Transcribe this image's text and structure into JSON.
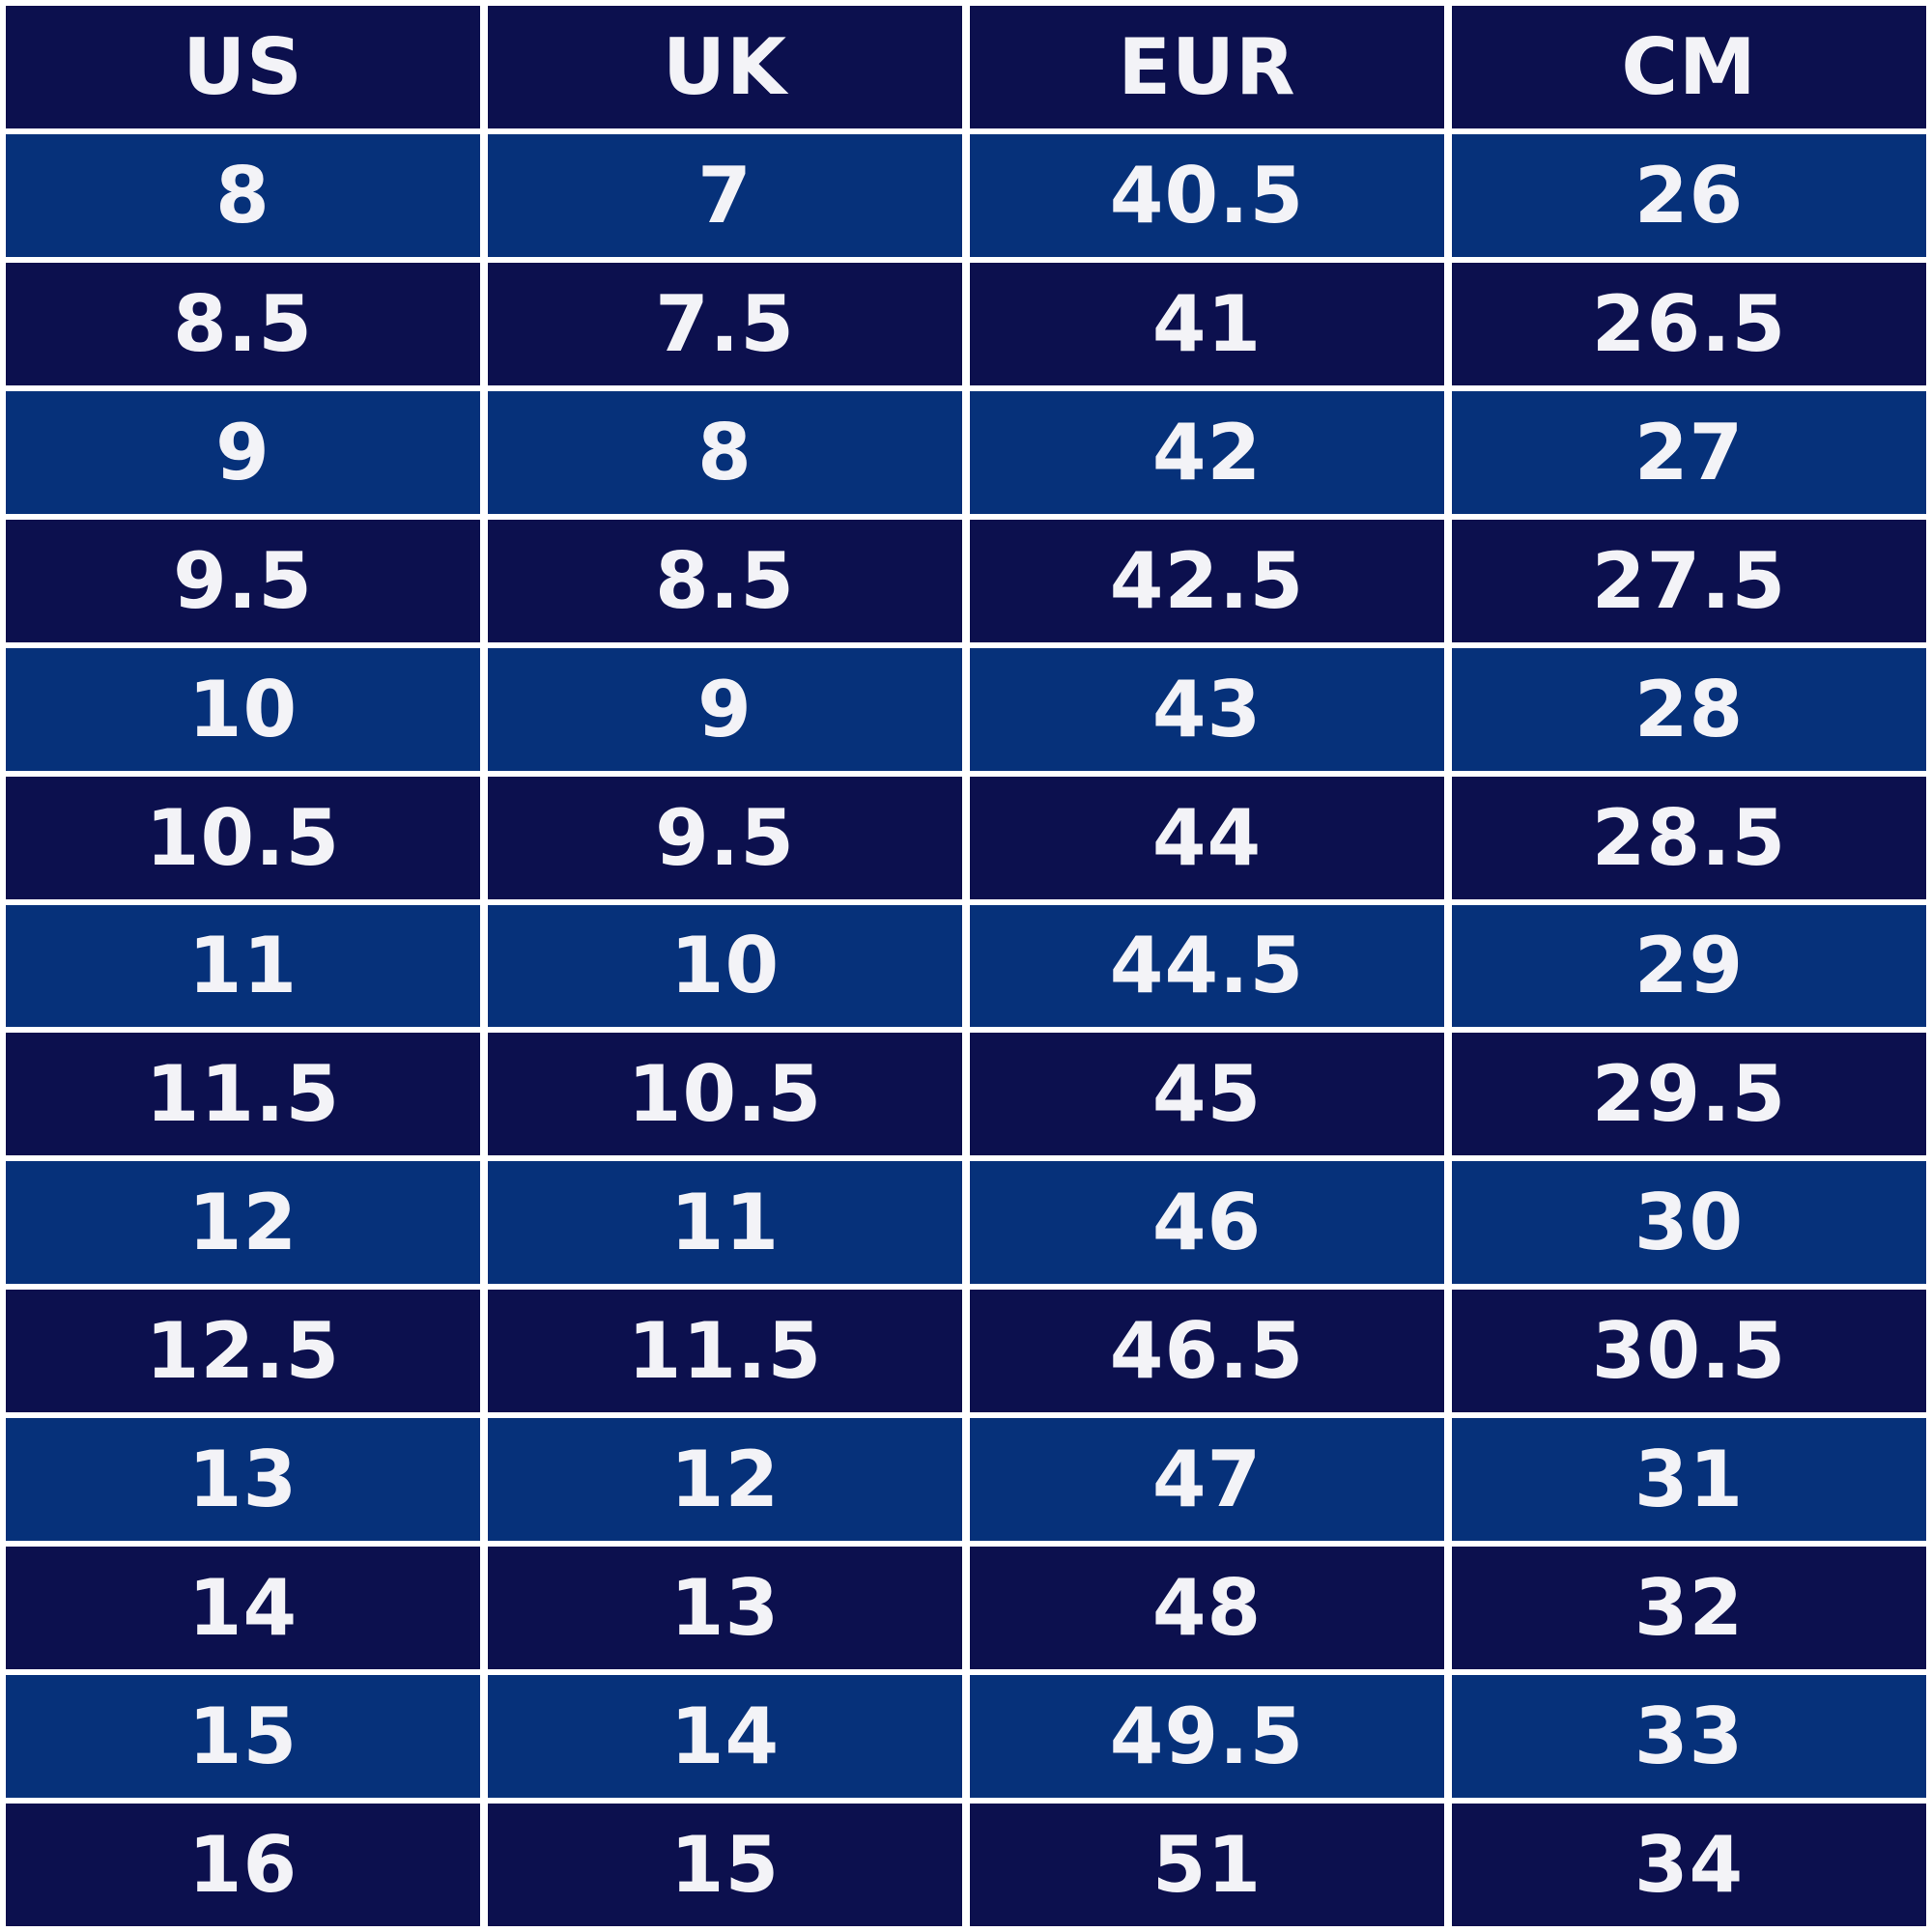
{
  "table": {
    "header": [
      "US",
      "UK",
      "EUR",
      "CM"
    ],
    "rows": [
      [
        8,
        7,
        40.5,
        26
      ],
      [
        8.5,
        7.5,
        41,
        26.5
      ],
      [
        9,
        8,
        42,
        27
      ],
      [
        9.5,
        8.5,
        42.5,
        27.5
      ],
      [
        10,
        9,
        43,
        28
      ],
      [
        10.5,
        9.5,
        44,
        28.5
      ],
      [
        11,
        10,
        44.5,
        29
      ],
      [
        11.5,
        10.5,
        45,
        29.5
      ],
      [
        12,
        11,
        46,
        30
      ],
      [
        12.5,
        11.5,
        46.5,
        30.5
      ],
      [
        13,
        12,
        47,
        31
      ],
      [
        14,
        13,
        48,
        32
      ],
      [
        15,
        14,
        49.5,
        33
      ],
      [
        16,
        15,
        51,
        34
      ]
    ]
  }
}
